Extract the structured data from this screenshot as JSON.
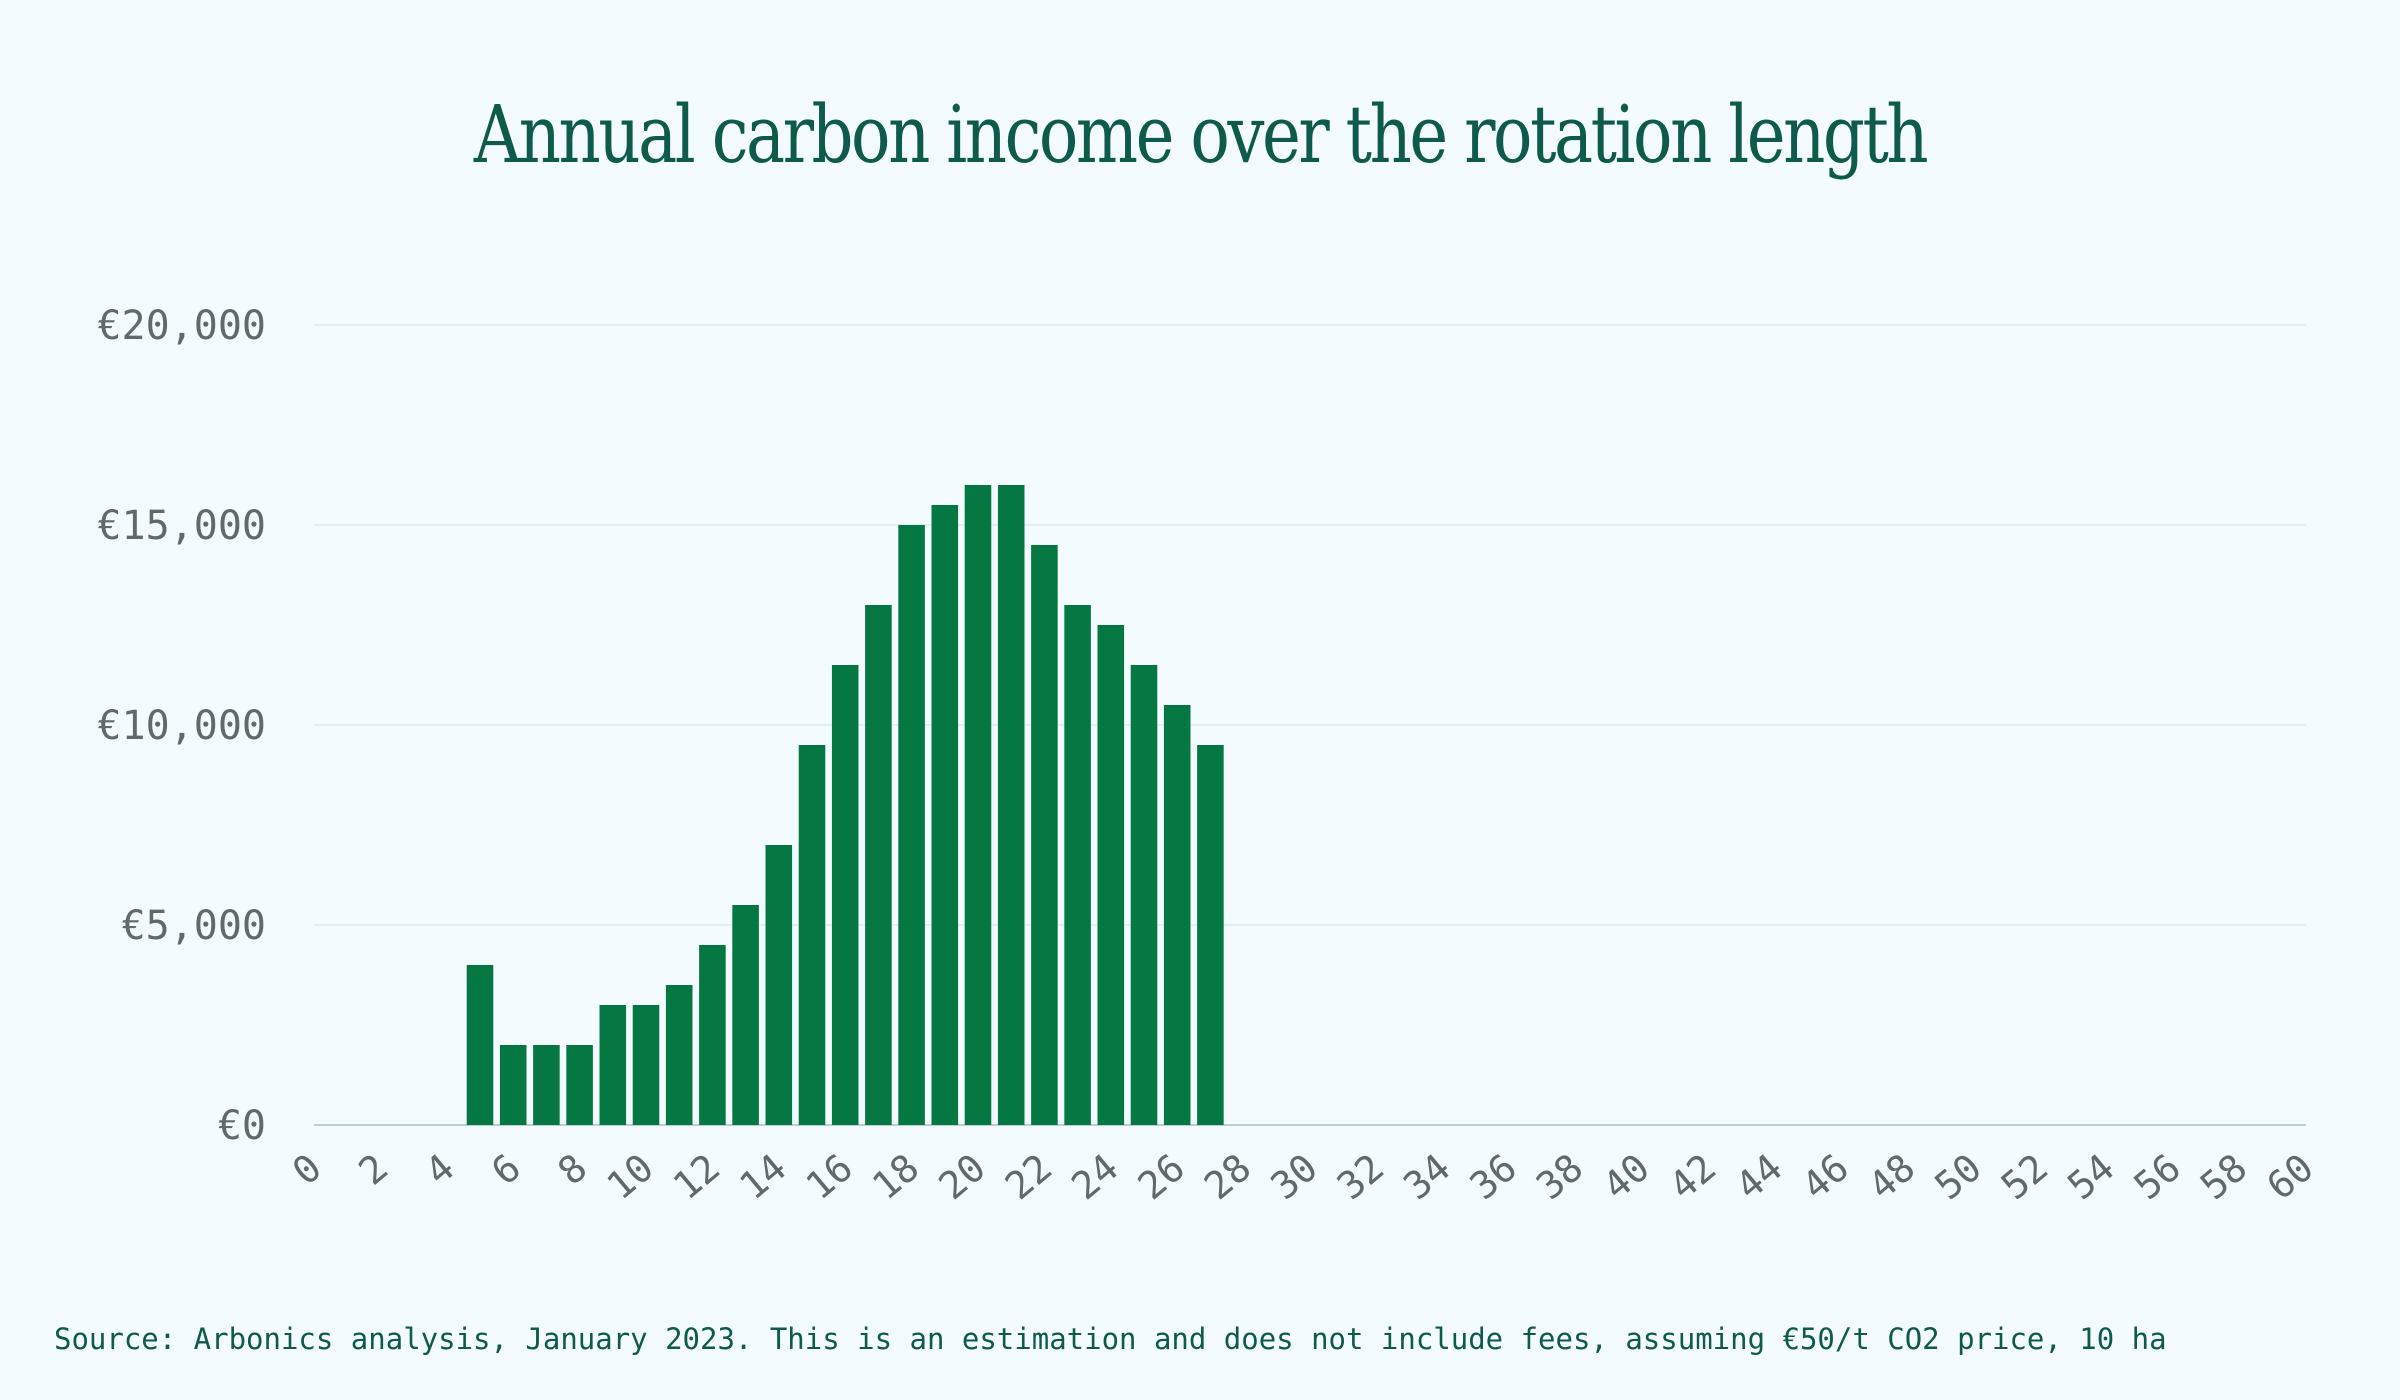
{
  "chart_data": {
    "type": "bar",
    "title": "Annual carbon income over the rotation length",
    "xlabel": "",
    "ylabel": "",
    "xlim": [
      0,
      60
    ],
    "ylim": [
      0,
      20000
    ],
    "y_ticks": [
      "€0",
      "€5,000",
      "€10,000",
      "€15,000",
      "€20,000"
    ],
    "x_ticks": [
      "0",
      "2",
      "4",
      "6",
      "8",
      "10",
      "12",
      "14",
      "16",
      "18",
      "20",
      "22",
      "24",
      "26",
      "28",
      "30",
      "32",
      "34",
      "36",
      "38",
      "40",
      "42",
      "44",
      "46",
      "48",
      "50",
      "52",
      "54",
      "56",
      "58",
      "60"
    ],
    "grid": true,
    "legend": "none",
    "x": [
      5,
      6,
      7,
      8,
      9,
      10,
      11,
      12,
      13,
      14,
      15,
      16,
      17,
      18,
      19,
      20,
      21,
      22,
      23,
      24,
      25,
      26,
      27
    ],
    "values": [
      4000,
      2000,
      2000,
      2000,
      3000,
      3000,
      3500,
      4500,
      5500,
      7000,
      9500,
      11500,
      13000,
      15000,
      15500,
      16000,
      16000,
      14500,
      13000,
      12500,
      11500,
      10500,
      9500
    ],
    "bar_color": "#047743",
    "source": "Source: Arbonics analysis, January 2023. This is an estimation and does not include fees, assuming €50/t CO2 price, 10 ha"
  }
}
